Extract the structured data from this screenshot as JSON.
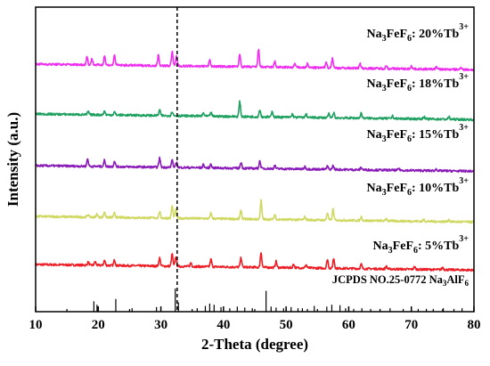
{
  "chart_data": {
    "type": "line",
    "xlabel": "2-Theta (degree)",
    "ylabel": "Intensity (a.u.)",
    "xlim": [
      10,
      80
    ],
    "x_ticks": [
      "10",
      "20",
      "30",
      "40",
      "50",
      "60",
      "70",
      "80"
    ],
    "grid": false,
    "legend": "inline-right",
    "reference_line_x": 32.6,
    "reference": {
      "label": "JCPDS NO.25-0772 Na3AlF6",
      "label_parts": [
        "JCPDS NO.25-0772 Na",
        "3",
        "AlF",
        "6"
      ],
      "peaks": [
        {
          "x": 19.3,
          "h": 0.45
        },
        {
          "x": 19.8,
          "h": 0.3
        },
        {
          "x": 22.8,
          "h": 0.55
        },
        {
          "x": 25.4,
          "h": 0.15
        },
        {
          "x": 29.3,
          "h": 0.2
        },
        {
          "x": 32.3,
          "h": 1.0
        },
        {
          "x": 32.8,
          "h": 0.4
        },
        {
          "x": 35.8,
          "h": 0.15
        },
        {
          "x": 37.1,
          "h": 0.25
        },
        {
          "x": 37.8,
          "h": 0.35
        },
        {
          "x": 38.5,
          "h": 0.3
        },
        {
          "x": 39.6,
          "h": 0.2
        },
        {
          "x": 41.0,
          "h": 0.15
        },
        {
          "x": 42.2,
          "h": 0.22
        },
        {
          "x": 43.4,
          "h": 0.18
        },
        {
          "x": 44.6,
          "h": 0.15
        },
        {
          "x": 46.8,
          "h": 0.9
        },
        {
          "x": 47.6,
          "h": 0.22
        },
        {
          "x": 48.4,
          "h": 0.18
        },
        {
          "x": 49.6,
          "h": 0.15
        },
        {
          "x": 50.8,
          "h": 0.2
        },
        {
          "x": 51.9,
          "h": 0.15
        },
        {
          "x": 52.6,
          "h": 0.15
        },
        {
          "x": 53.4,
          "h": 0.12
        },
        {
          "x": 54.5,
          "h": 0.25
        },
        {
          "x": 56.5,
          "h": 0.22
        },
        {
          "x": 57.3,
          "h": 0.3
        },
        {
          "x": 58.6,
          "h": 0.28
        },
        {
          "x": 59.5,
          "h": 0.15
        },
        {
          "x": 60.8,
          "h": 0.12
        },
        {
          "x": 62.1,
          "h": 0.15
        },
        {
          "x": 63.5,
          "h": 0.12
        },
        {
          "x": 65.0,
          "h": 0.12
        },
        {
          "x": 66.6,
          "h": 0.15
        },
        {
          "x": 68.7,
          "h": 0.12
        },
        {
          "x": 70.0,
          "h": 0.15
        },
        {
          "x": 71.1,
          "h": 0.12
        },
        {
          "x": 72.4,
          "h": 0.12
        },
        {
          "x": 73.5,
          "h": 0.12
        },
        {
          "x": 75.1,
          "h": 0.15
        },
        {
          "x": 76.8,
          "h": 0.12
        },
        {
          "x": 78.1,
          "h": 0.15
        }
      ]
    },
    "series": [
      {
        "name": "Na3FeF6: 5%Tb3+",
        "label_parts": [
          "Na",
          "3",
          "FeF",
          "6",
          ": 5%Tb",
          "3+"
        ],
        "color": "#ee1c24",
        "peaks": [
          [
            18.4,
            0.5
          ],
          [
            19.5,
            0.6
          ],
          [
            21.0,
            0.8
          ],
          [
            22.6,
            0.9
          ],
          [
            29.8,
            1.3
          ],
          [
            31.8,
            2.0
          ],
          [
            32.4,
            1.6
          ],
          [
            34.8,
            0.6
          ],
          [
            38.0,
            1.2
          ],
          [
            42.8,
            1.5
          ],
          [
            46.0,
            2.4
          ],
          [
            48.4,
            1.0
          ],
          [
            51.2,
            0.6
          ],
          [
            53.2,
            0.5
          ],
          [
            56.6,
            1.4
          ],
          [
            57.6,
            1.6
          ],
          [
            62.0,
            0.7
          ],
          [
            66.0,
            0.4
          ],
          [
            70.5,
            0.4
          ],
          [
            75.0,
            0.4
          ]
        ]
      },
      {
        "name": "Na3FeF6: 10%Tb3+",
        "label_parts": [
          "Na",
          "3",
          "FeF",
          "6",
          ": 10%Tb",
          "3+"
        ],
        "color": "#cfd860",
        "peaks": [
          [
            18.4,
            0.4
          ],
          [
            19.8,
            0.5
          ],
          [
            21.0,
            0.9
          ],
          [
            22.6,
            0.7
          ],
          [
            29.8,
            1.0
          ],
          [
            31.8,
            2.0
          ],
          [
            32.4,
            1.4
          ],
          [
            38.0,
            0.9
          ],
          [
            42.8,
            1.4
          ],
          [
            46.0,
            3.0
          ],
          [
            48.2,
            0.8
          ],
          [
            53.0,
            0.5
          ],
          [
            56.6,
            1.2
          ],
          [
            57.5,
            1.8
          ],
          [
            62.0,
            0.6
          ],
          [
            66.0,
            0.4
          ],
          [
            72.0,
            0.3
          ],
          [
            76.0,
            0.3
          ]
        ]
      },
      {
        "name": "Na3FeF6: 15%Tb3+",
        "label_parts": [
          "Na",
          "3",
          "FeF",
          "6",
          ": 15%Tb",
          "3+"
        ],
        "color": "#8a1bb8",
        "peaks": [
          [
            18.3,
            1.2
          ],
          [
            21.0,
            1.0
          ],
          [
            22.6,
            0.9
          ],
          [
            29.8,
            1.5
          ],
          [
            31.8,
            1.2
          ],
          [
            32.5,
            0.8
          ],
          [
            36.8,
            0.5
          ],
          [
            38.0,
            0.6
          ],
          [
            42.8,
            1.0
          ],
          [
            45.8,
            1.2
          ],
          [
            48.2,
            0.5
          ],
          [
            53.0,
            0.4
          ],
          [
            56.6,
            0.5
          ],
          [
            57.5,
            0.6
          ],
          [
            62.0,
            0.4
          ],
          [
            68.0,
            0.3
          ],
          [
            74.0,
            0.3
          ]
        ]
      },
      {
        "name": "Na3FeF6: 18%Tb3+",
        "label_parts": [
          "Na",
          "3",
          "FeF",
          "6",
          ": 18%Tb",
          "3+"
        ],
        "color": "#1ea060",
        "peaks": [
          [
            18.4,
            0.5
          ],
          [
            21.0,
            0.6
          ],
          [
            22.6,
            0.5
          ],
          [
            29.8,
            0.9
          ],
          [
            31.8,
            0.7
          ],
          [
            36.8,
            0.5
          ],
          [
            38.0,
            0.6
          ],
          [
            42.6,
            2.4
          ],
          [
            45.8,
            1.2
          ],
          [
            47.8,
            0.9
          ],
          [
            51.0,
            0.5
          ],
          [
            53.2,
            0.5
          ],
          [
            56.8,
            0.6
          ],
          [
            57.6,
            0.8
          ],
          [
            62.0,
            0.8
          ],
          [
            67.0,
            0.4
          ],
          [
            72.0,
            0.4
          ],
          [
            76.0,
            0.4
          ]
        ]
      },
      {
        "name": "Na3FeF6: 20%Tb3+",
        "label_parts": [
          "Na",
          "3",
          "FeF",
          "6",
          ": 20%Tb",
          "3+"
        ],
        "color": "#f02cf0",
        "peaks": [
          [
            18.2,
            1.3
          ],
          [
            19.0,
            1.0
          ],
          [
            21.0,
            1.5
          ],
          [
            22.6,
            1.6
          ],
          [
            29.6,
            1.7
          ],
          [
            31.8,
            2.3
          ],
          [
            32.5,
            1.6
          ],
          [
            37.8,
            1.0
          ],
          [
            42.6,
            2.0
          ],
          [
            45.6,
            2.8
          ],
          [
            48.2,
            0.9
          ],
          [
            51.4,
            0.6
          ],
          [
            53.4,
            0.6
          ],
          [
            56.4,
            1.0
          ],
          [
            57.4,
            1.6
          ],
          [
            61.8,
            0.8
          ],
          [
            66.0,
            0.5
          ],
          [
            70.0,
            0.5
          ],
          [
            74.0,
            0.4
          ],
          [
            78.0,
            0.4
          ]
        ]
      }
    ]
  }
}
